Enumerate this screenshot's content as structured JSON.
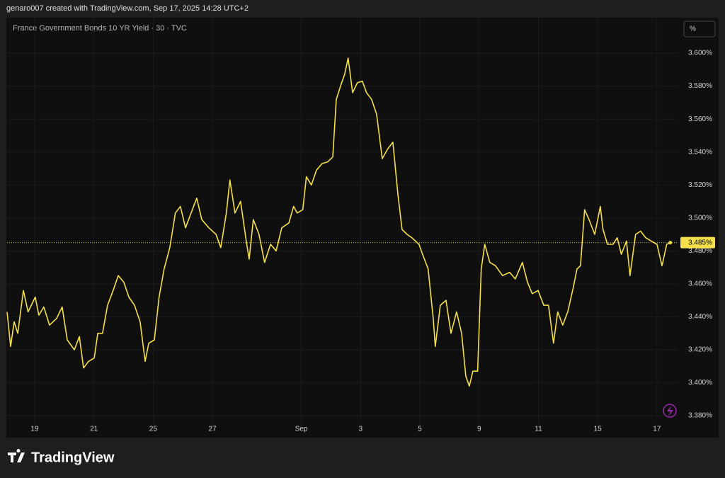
{
  "header": {
    "credit": "genaro007 created with TradingView.com, Sep 17, 2025 14:28 UTC+2"
  },
  "toolbar": {
    "unit_button": "%"
  },
  "footer": {
    "logo": "TradingView"
  },
  "chart_data": {
    "type": "line",
    "title": "France Government Bonds 10 YR Yield · 30 · TVC",
    "x": [
      0.07,
      0.19,
      0.31,
      0.43,
      0.62,
      0.78,
      1.02,
      1.14,
      1.31,
      1.5,
      1.74,
      1.93,
      2.1,
      2.34,
      2.51,
      2.65,
      2.82,
      3.01,
      3.13,
      3.29,
      3.46,
      3.65,
      3.82,
      4.01,
      4.18,
      4.37,
      4.56,
      4.73,
      4.85,
      5.04,
      5.2,
      5.37,
      5.56,
      5.75,
      5.92,
      6.09,
      6.28,
      6.47,
      6.64,
      6.88,
      7.12,
      7.28,
      7.47,
      7.59,
      7.76,
      7.95,
      8.14,
      8.24,
      8.38,
      8.57,
      8.76,
      8.96,
      9.15,
      9.34,
      9.58,
      9.74,
      9.86,
      10.05,
      10.17,
      10.34,
      10.51,
      10.7,
      10.89,
      11.06,
      11.18,
      11.34,
      11.46,
      11.58,
      11.73,
      11.89,
      12.06,
      12.2,
      12.37,
      12.54,
      12.73,
      12.92,
      13.09,
      13.26,
      13.4,
      13.57,
      13.73,
      13.97,
      14.09,
      14.28,
      14.45,
      14.52,
      14.69,
      14.88,
      15.05,
      15.24,
      15.41,
      15.55,
      15.67,
      15.79,
      15.95,
      16.07,
      16.19,
      16.36,
      16.55,
      16.79,
      17.03,
      17.22,
      17.46,
      17.63,
      17.79,
      17.99,
      18.18,
      18.34,
      18.51,
      18.65,
      18.82,
      18.99,
      19.18,
      19.3,
      19.42,
      19.56,
      19.71,
      19.9,
      20.09,
      20.18,
      20.33,
      20.52,
      20.66,
      20.8,
      20.97,
      21.09,
      21.28,
      21.45,
      21.62,
      21.81,
      22.0,
      22.17,
      22.33,
      22.45
    ],
    "series": [
      {
        "name": "France Government Bonds 10 YR Yield",
        "color": "#f5e04a",
        "values": [
          3.443,
          3.422,
          3.437,
          3.43,
          3.456,
          3.443,
          3.452,
          3.441,
          3.446,
          3.435,
          3.439,
          3.446,
          3.426,
          3.42,
          3.428,
          3.409,
          3.413,
          3.415,
          3.43,
          3.43,
          3.447,
          3.456,
          3.465,
          3.461,
          3.452,
          3.447,
          3.437,
          3.413,
          3.424,
          3.426,
          3.452,
          3.469,
          3.482,
          3.503,
          3.507,
          3.494,
          3.503,
          3.512,
          3.499,
          3.494,
          3.49,
          3.482,
          3.503,
          3.523,
          3.503,
          3.51,
          3.486,
          3.475,
          3.499,
          3.49,
          3.473,
          3.484,
          3.48,
          3.494,
          3.497,
          3.507,
          3.503,
          3.505,
          3.525,
          3.52,
          3.529,
          3.533,
          3.534,
          3.537,
          3.572,
          3.581,
          3.587,
          3.597,
          3.576,
          3.582,
          3.583,
          3.576,
          3.572,
          3.563,
          3.536,
          3.542,
          3.546,
          3.514,
          3.493,
          3.49,
          3.488,
          3.484,
          3.478,
          3.469,
          3.439,
          3.422,
          3.447,
          3.45,
          3.43,
          3.443,
          3.43,
          3.404,
          3.398,
          3.407,
          3.407,
          3.469,
          3.484,
          3.473,
          3.471,
          3.465,
          3.467,
          3.463,
          3.473,
          3.461,
          3.454,
          3.456,
          3.447,
          3.447,
          3.424,
          3.443,
          3.435,
          3.443,
          3.458,
          3.469,
          3.471,
          3.505,
          3.499,
          3.49,
          3.507,
          3.493,
          3.484,
          3.484,
          3.488,
          3.478,
          3.486,
          3.465,
          3.49,
          3.492,
          3.488,
          3.486,
          3.484,
          3.471,
          3.484,
          3.485
        ]
      }
    ],
    "xlim": [
      0.07,
      22.72
    ],
    "xticks": [
      {
        "value": 1,
        "label": "19"
      },
      {
        "value": 3,
        "label": "21"
      },
      {
        "value": 5,
        "label": "25"
      },
      {
        "value": 7,
        "label": "27"
      },
      {
        "value": 10,
        "label": "Sep"
      },
      {
        "value": 12,
        "label": "3"
      },
      {
        "value": 14,
        "label": "5"
      },
      {
        "value": 16,
        "label": "9"
      },
      {
        "value": 18,
        "label": "11"
      },
      {
        "value": 20,
        "label": "15"
      },
      {
        "value": 22,
        "label": "17"
      }
    ],
    "ylim": [
      3.3753,
      3.6215
    ],
    "yticks": [
      {
        "value": 3.38,
        "label": "3.380%"
      },
      {
        "value": 3.4,
        "label": "3.400%"
      },
      {
        "value": 3.42,
        "label": "3.420%"
      },
      {
        "value": 3.44,
        "label": "3.440%"
      },
      {
        "value": 3.46,
        "label": "3.460%"
      },
      {
        "value": 3.48,
        "label": "3.480%"
      },
      {
        "value": 3.5,
        "label": "3.500%"
      },
      {
        "value": 3.52,
        "label": "3.520%"
      },
      {
        "value": 3.54,
        "label": "3.540%"
      },
      {
        "value": 3.56,
        "label": "3.560%"
      },
      {
        "value": 3.58,
        "label": "3.580%"
      },
      {
        "value": 3.6,
        "label": "3.600%"
      }
    ],
    "price_line": {
      "value": 3.485,
      "label": "3.485%"
    },
    "grid": true
  }
}
